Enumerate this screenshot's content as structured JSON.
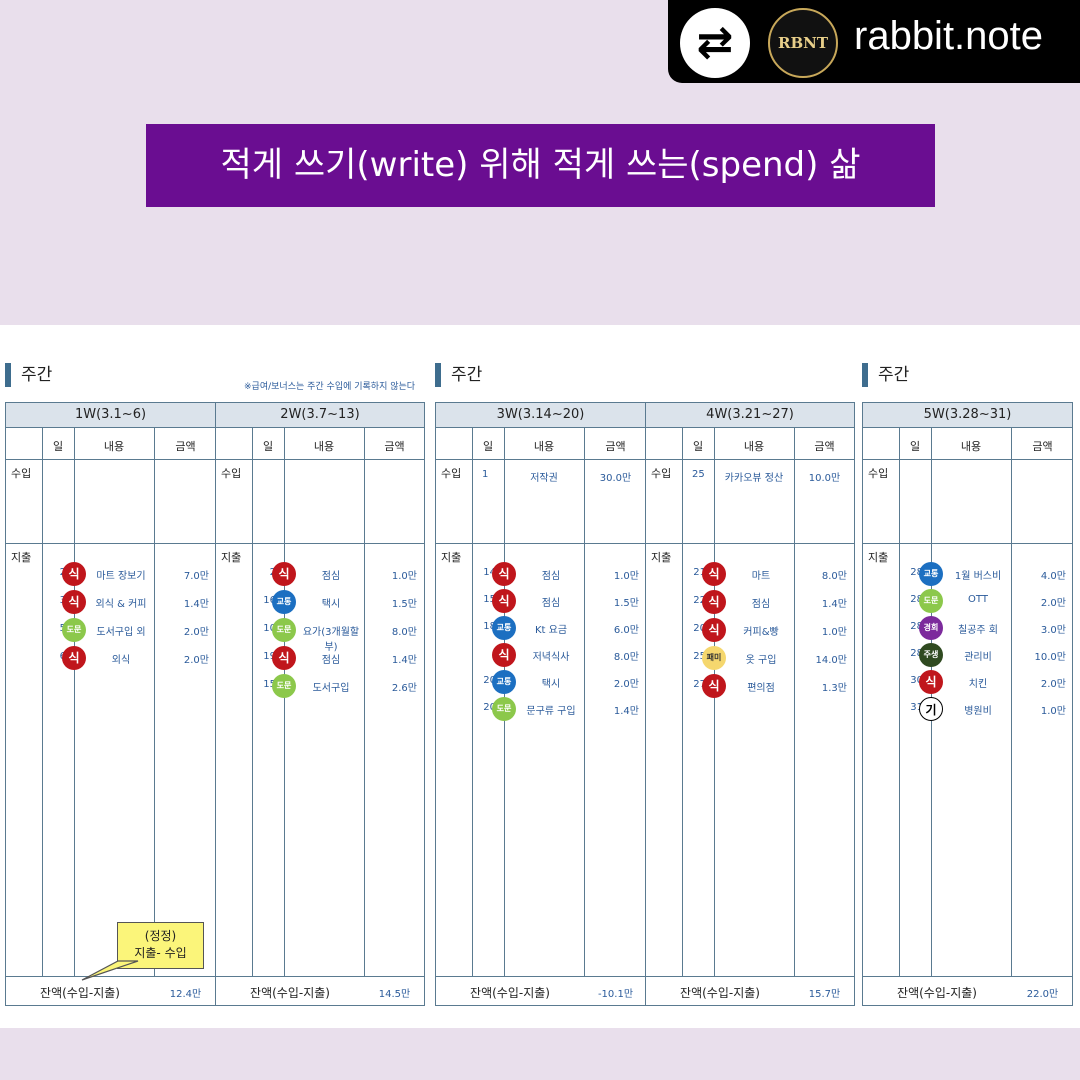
{
  "banner": {
    "username": "rabbit.note",
    "logo_text": "RBNT",
    "repost_icon": "repost-icon"
  },
  "title": "적게 쓰기(write) 위해 적게 쓰는(spend) 삶",
  "section_label": "주간",
  "note": "※급여/보너스는 주간 수입에 기록하지 않는다",
  "columns": {
    "day": "일",
    "content": "내용",
    "amount": "금액"
  },
  "row_labels": {
    "income": "수입",
    "expense": "지출",
    "balance": "잔액(수입-지출)"
  },
  "callout": {
    "line1": "(정정)",
    "line2": "지출- 수입"
  },
  "badge_colors": {
    "식": "#c0161c",
    "교통": "#1c6fc1",
    "도문": "#8cc84b",
    "패미": "#f5d76e",
    "경회": "#7c2a9c",
    "주생": "#2f4a20",
    "기": "#ffffff"
  },
  "weeks": [
    {
      "label": "1W(3.1~6)",
      "income": [],
      "expense": [
        {
          "day": "2",
          "cat": "식",
          "item": "마트 장보기",
          "amount": "7.0만"
        },
        {
          "day": "3",
          "cat": "식",
          "item": "외식 & 커피",
          "amount": "1.4만"
        },
        {
          "day": "5",
          "cat": "도문",
          "item": "도서구입 외",
          "amount": "2.0만"
        },
        {
          "day": "6",
          "cat": "식",
          "item": "외식",
          "amount": "2.0만"
        }
      ],
      "balance": "12.4만"
    },
    {
      "label": "2W(3.7~13)",
      "income": [],
      "expense": [
        {
          "day": "2",
          "cat": "식",
          "item": "점심",
          "amount": "1.0만"
        },
        {
          "day": "16",
          "cat": "교통",
          "item": "택시",
          "amount": "1.5만"
        },
        {
          "day": "10",
          "cat": "도문",
          "item": "요가(3개월할부)",
          "amount": "8.0만"
        },
        {
          "day": "19",
          "cat": "식",
          "item": "점심",
          "amount": "1.4만"
        },
        {
          "day": "15",
          "cat": "도문",
          "item": "도서구입",
          "amount": "2.6만"
        }
      ],
      "balance": "14.5만"
    },
    {
      "label": "3W(3.14~20)",
      "income": [
        {
          "day": "1",
          "item": "저작권",
          "amount": "30.0만"
        }
      ],
      "expense": [
        {
          "day": "14",
          "cat": "식",
          "item": "점심",
          "amount": "1.0만"
        },
        {
          "day": "15",
          "cat": "식",
          "item": "점심",
          "amount": "1.5만"
        },
        {
          "day": "18",
          "cat": "교통",
          "item": "Kt 요금",
          "amount": "6.0만"
        },
        {
          "day": "",
          "cat": "식",
          "item": "저녁식사",
          "amount": "8.0만"
        },
        {
          "day": "20",
          "cat": "교통",
          "item": "택시",
          "amount": "2.0만"
        },
        {
          "day": "20",
          "cat": "도문",
          "item": "문구류 구입",
          "amount": "1.4만"
        }
      ],
      "balance": "-10.1만"
    },
    {
      "label": "4W(3.21~27)",
      "income": [
        {
          "day": "25",
          "item": "카카오뷰 정산",
          "amount": "10.0만"
        }
      ],
      "expense": [
        {
          "day": "21",
          "cat": "식",
          "item": "마트",
          "amount": "8.0만"
        },
        {
          "day": "22",
          "cat": "식",
          "item": "점심",
          "amount": "1.4만"
        },
        {
          "day": "20",
          "cat": "식",
          "item": "커피&빵",
          "amount": "1.0만"
        },
        {
          "day": "25",
          "cat": "패미",
          "item": "옷 구입",
          "amount": "14.0만"
        },
        {
          "day": "27",
          "cat": "식",
          "item": "편의점",
          "amount": "1.3만"
        }
      ],
      "balance": "15.7만"
    },
    {
      "label": "5W(3.28~31)",
      "income": [],
      "expense": [
        {
          "day": "28",
          "cat": "교통",
          "item": "1월 버스비",
          "amount": "4.0만"
        },
        {
          "day": "28",
          "cat": "도문",
          "item": "OTT",
          "amount": "2.0만"
        },
        {
          "day": "28",
          "cat": "경회",
          "item": "칠공주 회",
          "amount": "3.0만"
        },
        {
          "day": "28",
          "cat": "주생",
          "item": "관리비",
          "amount": "10.0만"
        },
        {
          "day": "30",
          "cat": "식",
          "item": "치킨",
          "amount": "2.0만"
        },
        {
          "day": "31",
          "cat": "기",
          "item": "병원비",
          "amount": "1.0만"
        }
      ],
      "balance": "22.0만"
    }
  ]
}
